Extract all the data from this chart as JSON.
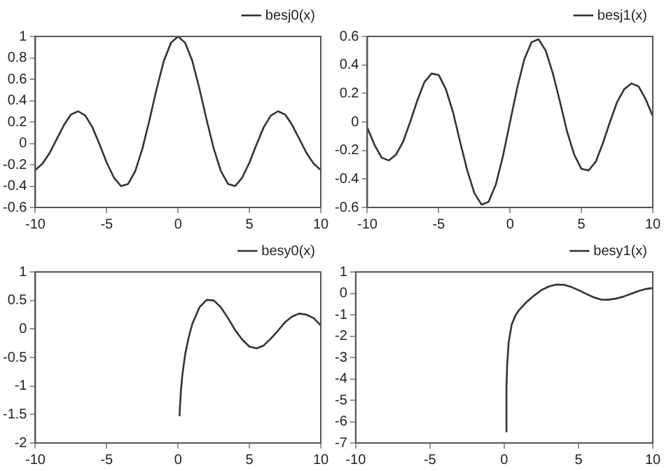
{
  "chart_data": [
    {
      "type": "line",
      "series": [
        {
          "name": "besj0(x)",
          "color": "#333333",
          "x": [
            -10,
            -9.5,
            -9,
            -8.5,
            -8,
            -7.5,
            -7,
            -6.5,
            -6,
            -5.5,
            -5,
            -4.5,
            -4,
            -3.5,
            -3,
            -2.5,
            -2,
            -1.5,
            -1,
            -0.5,
            0,
            0.5,
            1,
            1.5,
            2,
            2.5,
            3,
            3.5,
            4,
            4.5,
            5,
            5.5,
            6,
            6.5,
            7,
            7.5,
            8,
            8.5,
            9,
            9.5,
            10
          ],
          "values": [
            -0.25,
            -0.19,
            -0.09,
            0.04,
            0.17,
            0.27,
            0.3,
            0.26,
            0.15,
            -0.01,
            -0.18,
            -0.32,
            -0.4,
            -0.38,
            -0.26,
            -0.05,
            0.22,
            0.51,
            0.77,
            0.94,
            1,
            0.94,
            0.77,
            0.51,
            0.22,
            -0.05,
            -0.26,
            -0.38,
            -0.4,
            -0.32,
            -0.18,
            -0.01,
            0.15,
            0.26,
            0.3,
            0.27,
            0.17,
            0.04,
            -0.09,
            -0.19,
            -0.25
          ]
        }
      ],
      "xlim": [
        -10,
        10
      ],
      "xticks": [
        -10,
        -5,
        0,
        5,
        10
      ],
      "ylim": [
        -0.6,
        1
      ],
      "yticks": [
        -0.6,
        -0.4,
        -0.2,
        0,
        0.2,
        0.4,
        0.6,
        0.8,
        1
      ],
      "grid": false,
      "legend": "top right",
      "marker": "none",
      "line_style": "solid"
    },
    {
      "type": "line",
      "series": [
        {
          "name": "besj1(x)",
          "color": "#333333",
          "x": [
            -10,
            -9.5,
            -9,
            -8.5,
            -8,
            -7.5,
            -7,
            -6.5,
            -6,
            -5.5,
            -5,
            -4.5,
            -4,
            -3.5,
            -3,
            -2.5,
            -2,
            -1.5,
            -1,
            -0.5,
            0,
            0.5,
            1,
            1.5,
            2,
            2.5,
            3,
            3.5,
            4,
            4.5,
            5,
            5.5,
            6,
            6.5,
            7,
            7.5,
            8,
            8.5,
            9,
            9.5,
            10
          ],
          "values": [
            -0.04,
            -0.16,
            -0.25,
            -0.27,
            -0.23,
            -0.14,
            0,
            0.15,
            0.28,
            0.34,
            0.33,
            0.23,
            0.07,
            -0.14,
            -0.34,
            -0.5,
            -0.58,
            -0.56,
            -0.44,
            -0.24,
            0,
            0.24,
            0.44,
            0.56,
            0.58,
            0.5,
            0.34,
            0.14,
            -0.07,
            -0.23,
            -0.33,
            -0.34,
            -0.28,
            -0.15,
            0,
            0.14,
            0.23,
            0.27,
            0.25,
            0.16,
            0.04
          ]
        }
      ],
      "xlim": [
        -10,
        10
      ],
      "xticks": [
        -10,
        -5,
        0,
        5,
        10
      ],
      "ylim": [
        -0.6,
        0.6
      ],
      "yticks": [
        -0.6,
        -0.4,
        -0.2,
        0,
        0.2,
        0.4,
        0.6
      ],
      "grid": false,
      "legend": "top right",
      "marker": "none",
      "line_style": "solid"
    },
    {
      "type": "line",
      "series": [
        {
          "name": "besy0(x)",
          "color": "#333333",
          "x": [
            0.1,
            0.2,
            0.3,
            0.5,
            0.75,
            1,
            1.5,
            2,
            2.5,
            3,
            3.5,
            4,
            4.5,
            5,
            5.5,
            6,
            6.5,
            7,
            7.5,
            8,
            8.5,
            9,
            9.5,
            10
          ],
          "values": [
            -1.53,
            -1.08,
            -0.81,
            -0.44,
            -0.14,
            0.09,
            0.38,
            0.51,
            0.5,
            0.38,
            0.19,
            -0.02,
            -0.19,
            -0.31,
            -0.34,
            -0.29,
            -0.17,
            -0.03,
            0.12,
            0.22,
            0.27,
            0.25,
            0.19,
            0.06
          ]
        }
      ],
      "xlim": [
        -10,
        10
      ],
      "xticks": [
        -10,
        -5,
        0,
        5,
        10
      ],
      "ylim": [
        -2,
        1
      ],
      "yticks": [
        -2,
        -1.5,
        -1,
        -0.5,
        0,
        0.5,
        1
      ],
      "grid": false,
      "legend": "top right",
      "marker": "none",
      "line_style": "solid"
    },
    {
      "type": "line",
      "series": [
        {
          "name": "besy1(x)",
          "color": "#333333",
          "x": [
            0.1,
            0.15,
            0.2,
            0.3,
            0.5,
            0.75,
            1,
            1.5,
            2,
            2.5,
            3,
            3.5,
            4,
            4.5,
            5,
            5.5,
            6,
            6.5,
            7,
            7.5,
            8,
            8.5,
            9,
            9.5,
            10
          ],
          "values": [
            -6.46,
            -4.36,
            -3.32,
            -2.29,
            -1.47,
            -1.04,
            -0.78,
            -0.41,
            -0.11,
            0.15,
            0.32,
            0.41,
            0.4,
            0.3,
            0.15,
            -0.02,
            -0.18,
            -0.29,
            -0.3,
            -0.25,
            -0.16,
            -0.03,
            0.1,
            0.2,
            0.25
          ]
        }
      ],
      "xlim": [
        -10,
        10
      ],
      "xticks": [
        -10,
        -5,
        0,
        5,
        10
      ],
      "ylim": [
        -7,
        1
      ],
      "yticks": [
        -7,
        -6,
        -5,
        -4,
        -3,
        -2,
        -1,
        0,
        1
      ],
      "grid": false,
      "legend": "top right",
      "marker": "none",
      "line_style": "solid"
    }
  ]
}
